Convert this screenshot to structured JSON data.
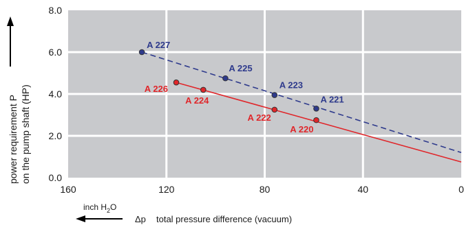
{
  "chart_data": {
    "type": "line",
    "xlim": [
      160,
      0
    ],
    "ylim": [
      0,
      8.0
    ],
    "x_ticks": [
      "160",
      "120",
      "80",
      "40",
      "0"
    ],
    "y_ticks": [
      "0.0",
      "2.0",
      "4.0",
      "6.0",
      "8.0"
    ],
    "ylabel_line1": "power requirement P",
    "ylabel_line2": "on the pump shaft (HP)",
    "xunit_prefix": "inch H",
    "xunit_sub": "2",
    "xunit_suffix": "O",
    "xlabel_symbol": "Δp",
    "xlabel": "total pressure difference (vacuum)",
    "grid": true,
    "series": [
      {
        "color": "#2e3a8c",
        "style": "dashed",
        "line": [
          [
            130,
            6.0
          ],
          [
            0,
            1.2
          ]
        ],
        "points": [
          {
            "name": "A 227",
            "x": 130,
            "y": 6.0
          },
          {
            "name": "A 225",
            "x": 96,
            "y": 4.75
          },
          {
            "name": "A 223",
            "x": 76,
            "y": 3.95
          },
          {
            "name": "A 221",
            "x": 59,
            "y": 3.3
          }
        ]
      },
      {
        "color": "#e0262a",
        "style": "solid",
        "line": [
          [
            116,
            4.55
          ],
          [
            0,
            0.75
          ]
        ],
        "points": [
          {
            "name": "A 226",
            "x": 116,
            "y": 4.55
          },
          {
            "name": "A 224",
            "x": 105,
            "y": 4.2
          },
          {
            "name": "A 222",
            "x": 76,
            "y": 3.25
          },
          {
            "name": "A 220",
            "x": 59,
            "y": 2.75
          }
        ]
      }
    ]
  }
}
